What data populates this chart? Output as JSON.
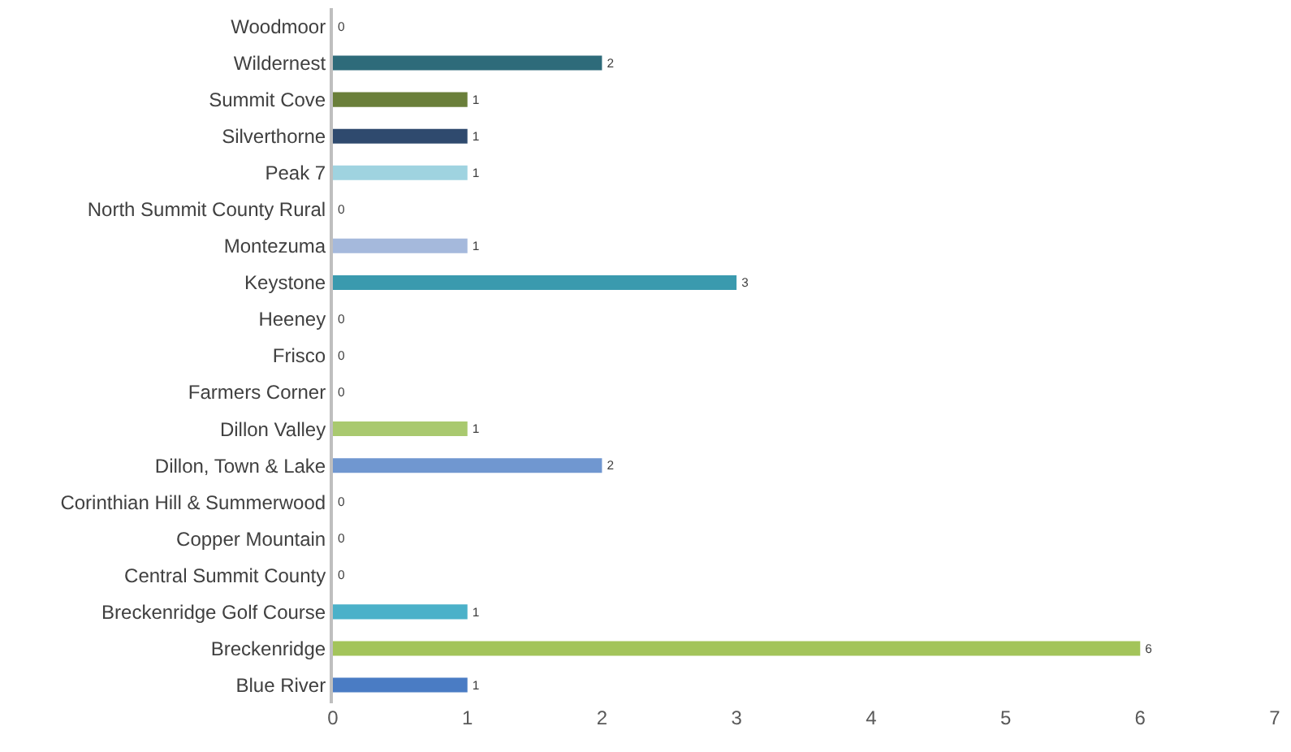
{
  "chart_data": {
    "type": "bar",
    "orientation": "horizontal",
    "categories": [
      "Woodmoor",
      "Wildernest",
      "Summit Cove",
      "Silverthorne",
      "Peak 7",
      "North Summit County Rural",
      "Montezuma",
      "Keystone",
      "Heeney",
      "Frisco",
      "Farmers Corner",
      "Dillon Valley",
      "Dillon, Town & Lake",
      "Corinthian Hill & Summerwood",
      "Copper Mountain",
      "Central Summit County",
      "Breckenridge Golf Course",
      "Breckenridge",
      "Blue River"
    ],
    "values": [
      0,
      2,
      1,
      1,
      1,
      0,
      1,
      3,
      0,
      0,
      0,
      1,
      2,
      0,
      0,
      0,
      1,
      6,
      1
    ],
    "colors": [
      "#7f7f7f",
      "#2e6b7a",
      "#6a7f3a",
      "#2f4a6e",
      "#9fd3e0",
      "#7f7f7f",
      "#a5b9dc",
      "#3a9aae",
      "#7f7f7f",
      "#7f7f7f",
      "#7f7f7f",
      "#a9c96f",
      "#7097d0",
      "#7f7f7f",
      "#7f7f7f",
      "#7f7f7f",
      "#4bb1c9",
      "#a3c45a",
      "#4a7cc4"
    ],
    "xlim": [
      0,
      7
    ],
    "xticks": [
      0,
      1,
      2,
      3,
      4,
      5,
      6,
      7
    ],
    "grid": false,
    "data_labels": true
  }
}
